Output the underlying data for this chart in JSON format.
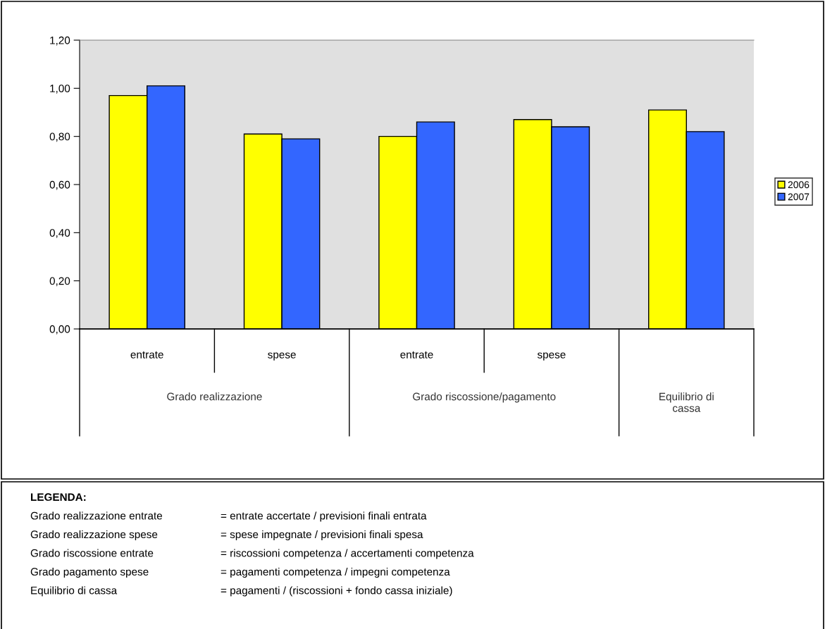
{
  "chart_data": {
    "type": "bar",
    "categories": [
      "entrate",
      "spese",
      "entrate",
      "spese",
      null
    ],
    "series": [
      {
        "name": "2006",
        "color": "#ffff00",
        "values": [
          0.97,
          0.81,
          0.8,
          0.87,
          0.91
        ]
      },
      {
        "name": "2007",
        "color": "#3366ff",
        "values": [
          1.01,
          0.79,
          0.86,
          0.84,
          0.82
        ]
      }
    ],
    "ylim": [
      0,
      1.2
    ],
    "yticks": [
      {
        "value": 0,
        "label": "0,00"
      },
      {
        "value": 0.2,
        "label": "0,20"
      },
      {
        "value": 0.4,
        "label": "0,40"
      },
      {
        "value": 0.6,
        "label": "0,60"
      },
      {
        "value": 0.8,
        "label": "0,80"
      },
      {
        "value": 1.0,
        "label": "1,00"
      },
      {
        "value": 1.2,
        "label": "1,20"
      }
    ],
    "grid": false,
    "legend": "right",
    "annotations": [
      "Grado realizzazione",
      "Grado riscossione/pagamento",
      "Equilibrio di\ncassa",
      "LEGENDA:",
      "Grado realizzazione entrate\t= entrate accertate / previsioni finali entrata",
      "Grado realizzazione spese\t= spese impegnate / previsioni finali spesa",
      "Grado riscossione entrate\t= riscossioni competenza / accertamenti competenza",
      "Grado pagamento spese\t= pagamenti competenza / impegni competenza",
      "Equilibrio di cassa\t= pagamenti / (riscossioni + fondo cassa iniziale)"
    ]
  }
}
